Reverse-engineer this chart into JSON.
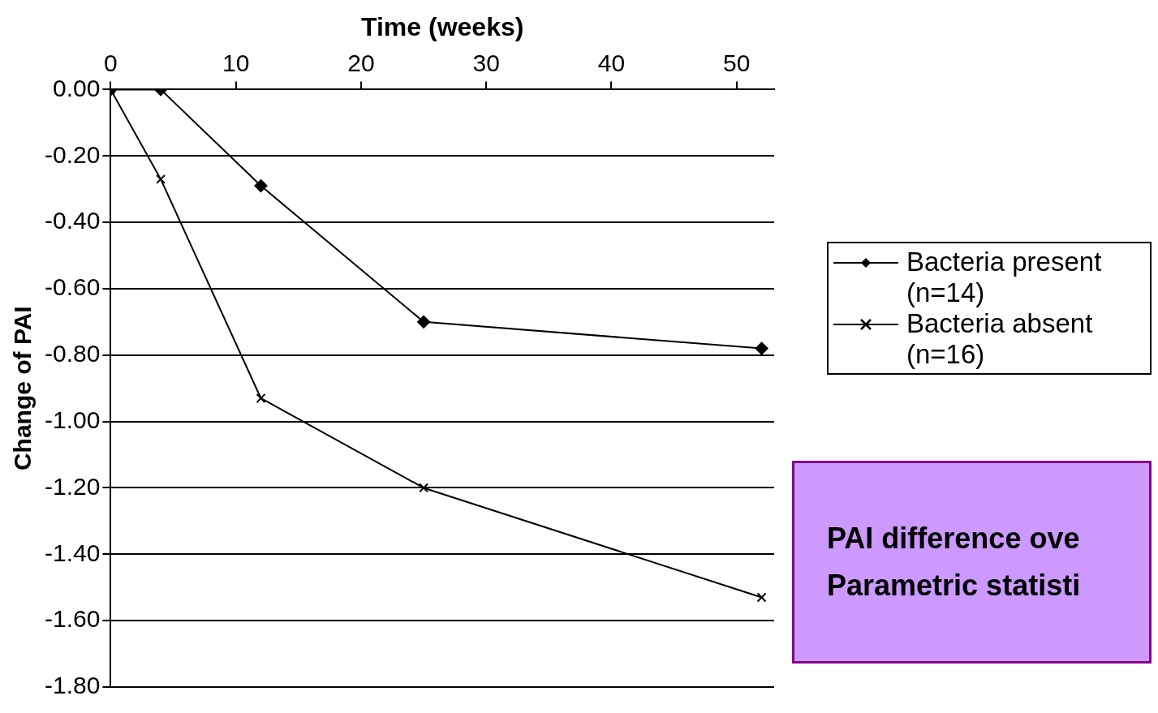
{
  "chart_data": {
    "type": "line",
    "xlabel": "Time (weeks)",
    "ylabel": "Change of PAI",
    "xlim": [
      0,
      53
    ],
    "xticks": [
      0,
      10,
      20,
      30,
      40,
      50
    ],
    "ylim": [
      -1.8,
      0
    ],
    "yticks": [
      {
        "value": 0,
        "label": "0.00"
      },
      {
        "value": -0.2,
        "label": "-0.20"
      },
      {
        "value": -0.4,
        "label": "-0.40"
      },
      {
        "value": -0.6,
        "label": "-0.60"
      },
      {
        "value": -0.8,
        "label": "-0.80"
      },
      {
        "value": -1,
        "label": "-1.00"
      },
      {
        "value": -1.2,
        "label": "-1.20"
      },
      {
        "value": -1.4,
        "label": "-1.40"
      },
      {
        "value": -1.6,
        "label": "-1.60"
      },
      {
        "value": -1.8,
        "label": "-1.80"
      }
    ],
    "x": [
      0,
      4,
      12,
      25,
      52
    ],
    "series": [
      {
        "name": "Bacteria present (n=14)",
        "color": "#000000",
        "marker": "diamond",
        "values": [
          0,
          0,
          -0.29,
          -0.7,
          -0.78
        ]
      },
      {
        "name": "Bacteria absent (n=16)",
        "color": "#000000",
        "marker": "cross",
        "values": [
          0,
          -0.27,
          -0.93,
          -1.2,
          -1.53
        ]
      }
    ],
    "grid": "y",
    "legend": "right",
    "line_style": "solid",
    "annotations": [
      "PAI difference ove",
      "Parametric statisti"
    ]
  }
}
